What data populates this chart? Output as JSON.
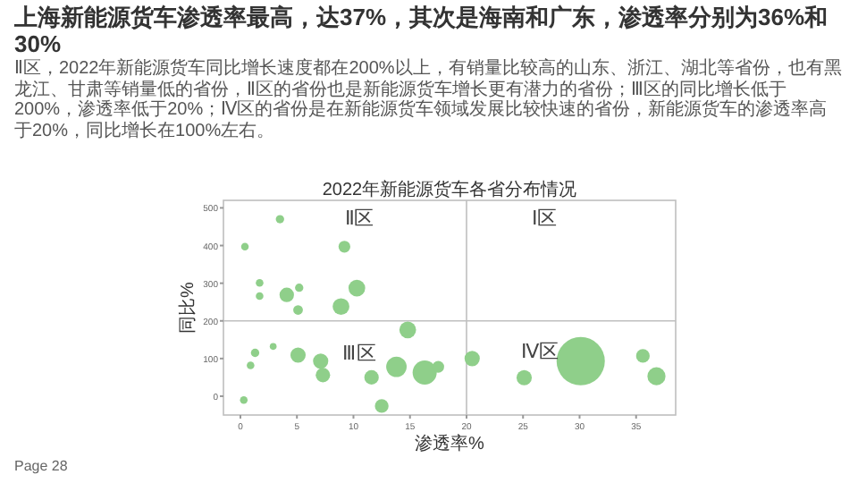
{
  "chart_data": {
    "type": "bubble",
    "title": "2022年新能源货车各省分布情况",
    "xlabel": "渗透率%",
    "ylabel": "同比%",
    "x": [
      3.5,
      0.4,
      9.2,
      1.7,
      1.7,
      5.2,
      4.1,
      5.1,
      10.3,
      8.9,
      14.8,
      2.9,
      1.3,
      0.9,
      0.3,
      5.1,
      7.1,
      7.3,
      11.6,
      13.8,
      16.3,
      17.5,
      12.5,
      20.5,
      25.1,
      30.1,
      35.6,
      36.8
    ],
    "values": [
      470,
      397,
      397,
      301,
      266,
      288,
      269,
      229,
      287,
      238,
      176,
      132,
      115,
      82,
      -10,
      109,
      93,
      56,
      50,
      78,
      63,
      78,
      -26,
      100,
      49,
      93,
      107,
      53
    ],
    "sizes": [
      0.03,
      0.025,
      0.06,
      0.025,
      0.025,
      0.03,
      0.09,
      0.04,
      0.12,
      0.12,
      0.12,
      0.02,
      0.03,
      0.025,
      0.025,
      0.1,
      0.1,
      0.09,
      0.09,
      0.18,
      0.25,
      0.06,
      0.08,
      0.1,
      0.1,
      1,
      0.08,
      0.14
    ],
    "color": "#8fcf8a",
    "xlim": [
      -1.5,
      38.5
    ],
    "ylim": [
      -50,
      520
    ],
    "xticks": [
      0,
      5,
      10,
      15,
      20,
      25,
      30,
      35
    ],
    "yticks": [
      0,
      100,
      200,
      300,
      400,
      500
    ],
    "ref_lines": [
      {
        "axis": "x",
        "value": 20,
        "color": "#bfbfbf"
      },
      {
        "axis": "y",
        "value": 200,
        "color": "#bfbfbf"
      }
    ],
    "annotations": [
      "上海新能源货车渗透率最高，达37%，其次是海南和广东，渗透率分别为36%和30%",
      "Ⅱ区，2022年新能源货车同比增长速度都在200%以上，有销量比较高的山东、浙江、湖北等省份，也有黑龙江、甘肃等销量低的省份，Ⅱ区的省份也是新能源货车增长更有潜力的省份；Ⅲ区的同比增长低于200%，渗透率低于20%；Ⅳ区的省份是在新能源货车领域发展比较快速的省份，新能源货车的渗透率高于20%，同比增长在100%左右。",
      "Ⅱ区",
      "Ⅰ区",
      "Ⅲ区",
      "Ⅳ区",
      "Page 28"
    ]
  }
}
